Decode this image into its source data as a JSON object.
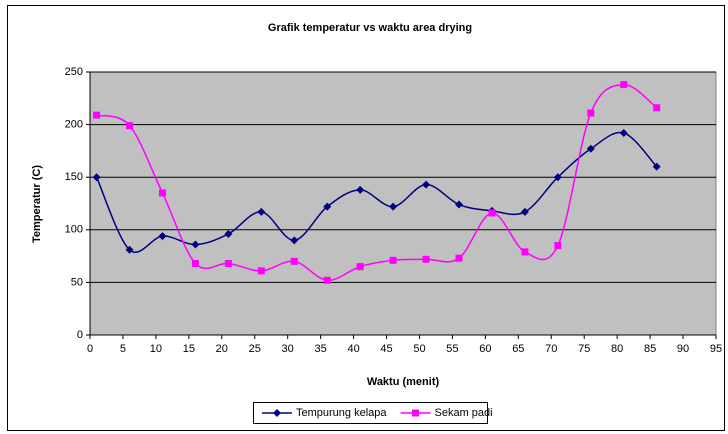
{
  "chart_data": {
    "type": "line",
    "title": "Grafik temperatur vs waktu area drying",
    "x_label": "Waktu (menit)",
    "y_label": "Temperatur (C)",
    "x": [
      1,
      6,
      11,
      16,
      21,
      26,
      31,
      36,
      41,
      46,
      51,
      56,
      61,
      66,
      71,
      76,
      81,
      86
    ],
    "series": [
      {
        "name": "Tempurung kelapa",
        "color": "#000080",
        "marker": "diamond",
        "values": [
          150,
          81,
          94,
          86,
          96,
          117,
          90,
          122,
          138,
          122,
          143,
          124,
          118,
          117,
          150,
          177,
          192,
          160
        ]
      },
      {
        "name": "Sekam padi",
        "color": "#ff00ff",
        "marker": "square",
        "values": [
          209,
          199,
          135,
          68,
          68,
          61,
          70,
          52,
          65,
          71,
          72,
          73,
          116,
          79,
          85,
          211,
          238,
          216
        ]
      }
    ],
    "xlim": [
      0,
      95
    ],
    "xticks": [
      0,
      5,
      10,
      15,
      20,
      25,
      30,
      35,
      40,
      45,
      50,
      55,
      60,
      65,
      70,
      75,
      80,
      85,
      90,
      95
    ],
    "ylim": [
      0,
      250
    ],
    "yticks": [
      0,
      50,
      100,
      150,
      200,
      250
    ],
    "grid": true,
    "smooth": true,
    "legend": "bottom"
  }
}
